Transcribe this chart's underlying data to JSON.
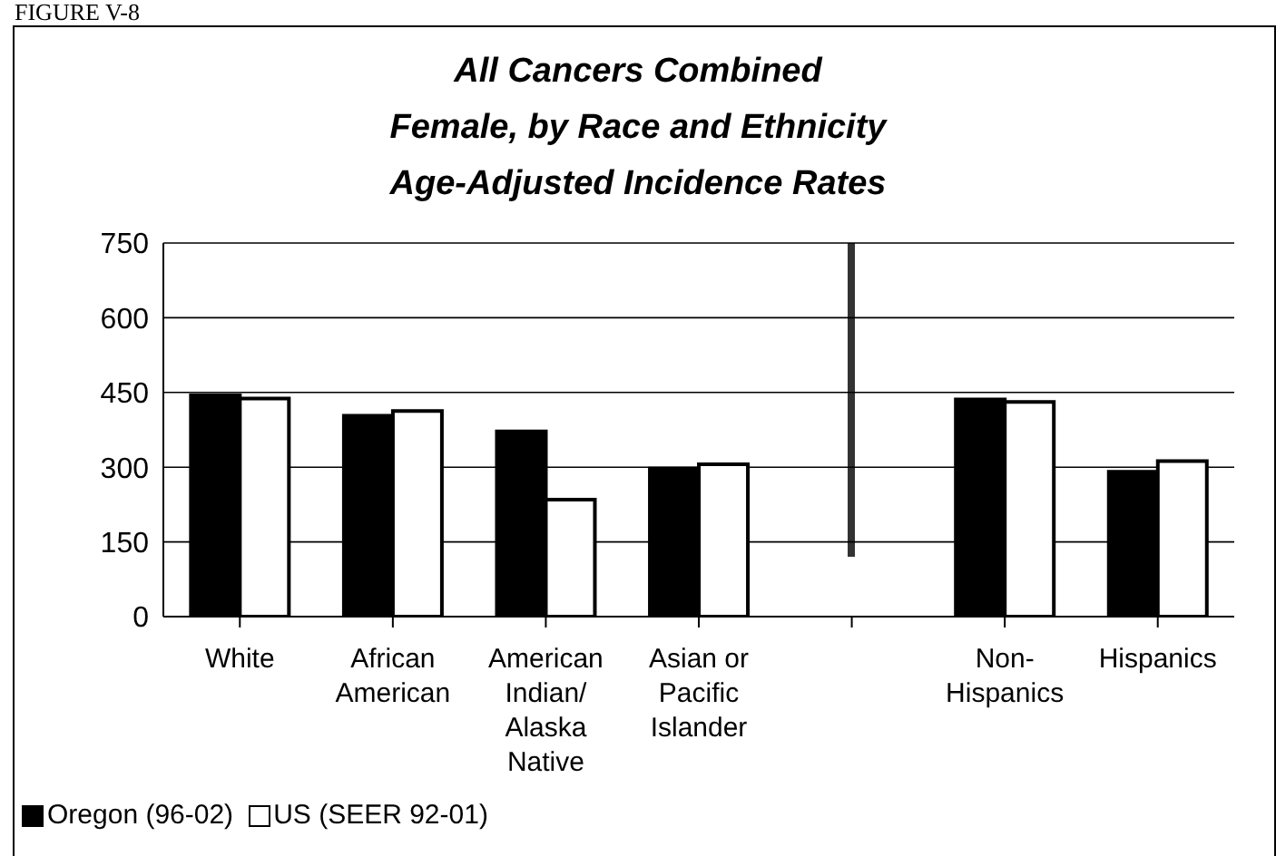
{
  "chart_data": {
    "type": "bar",
    "title": "All Cancers Combined\nFemale, by Race and Ethnicity\nAge-Adjusted Incidence Rates",
    "annotations": [
      "FIGURE V-8"
    ],
    "categories": [
      "White",
      "African American",
      "American Indian/ Alaska Native",
      "Asian or Pacific Islander",
      null,
      "Non-Hispanics",
      "Hispanics"
    ],
    "series": [
      {
        "name": "Oregon (96-02)",
        "color": "#000000",
        "values": [
          444,
          403,
          372,
          297,
          null,
          436,
          291
        ]
      },
      {
        "name": "US (SEER 92-01)",
        "color": "#ffffff",
        "values": [
          438,
          413,
          235,
          306,
          null,
          431,
          312
        ]
      }
    ],
    "ylim": [
      0,
      750
    ],
    "yticks": [
      0,
      150,
      300,
      450,
      600,
      750
    ],
    "grid": "y",
    "legend": "bottom left"
  }
}
